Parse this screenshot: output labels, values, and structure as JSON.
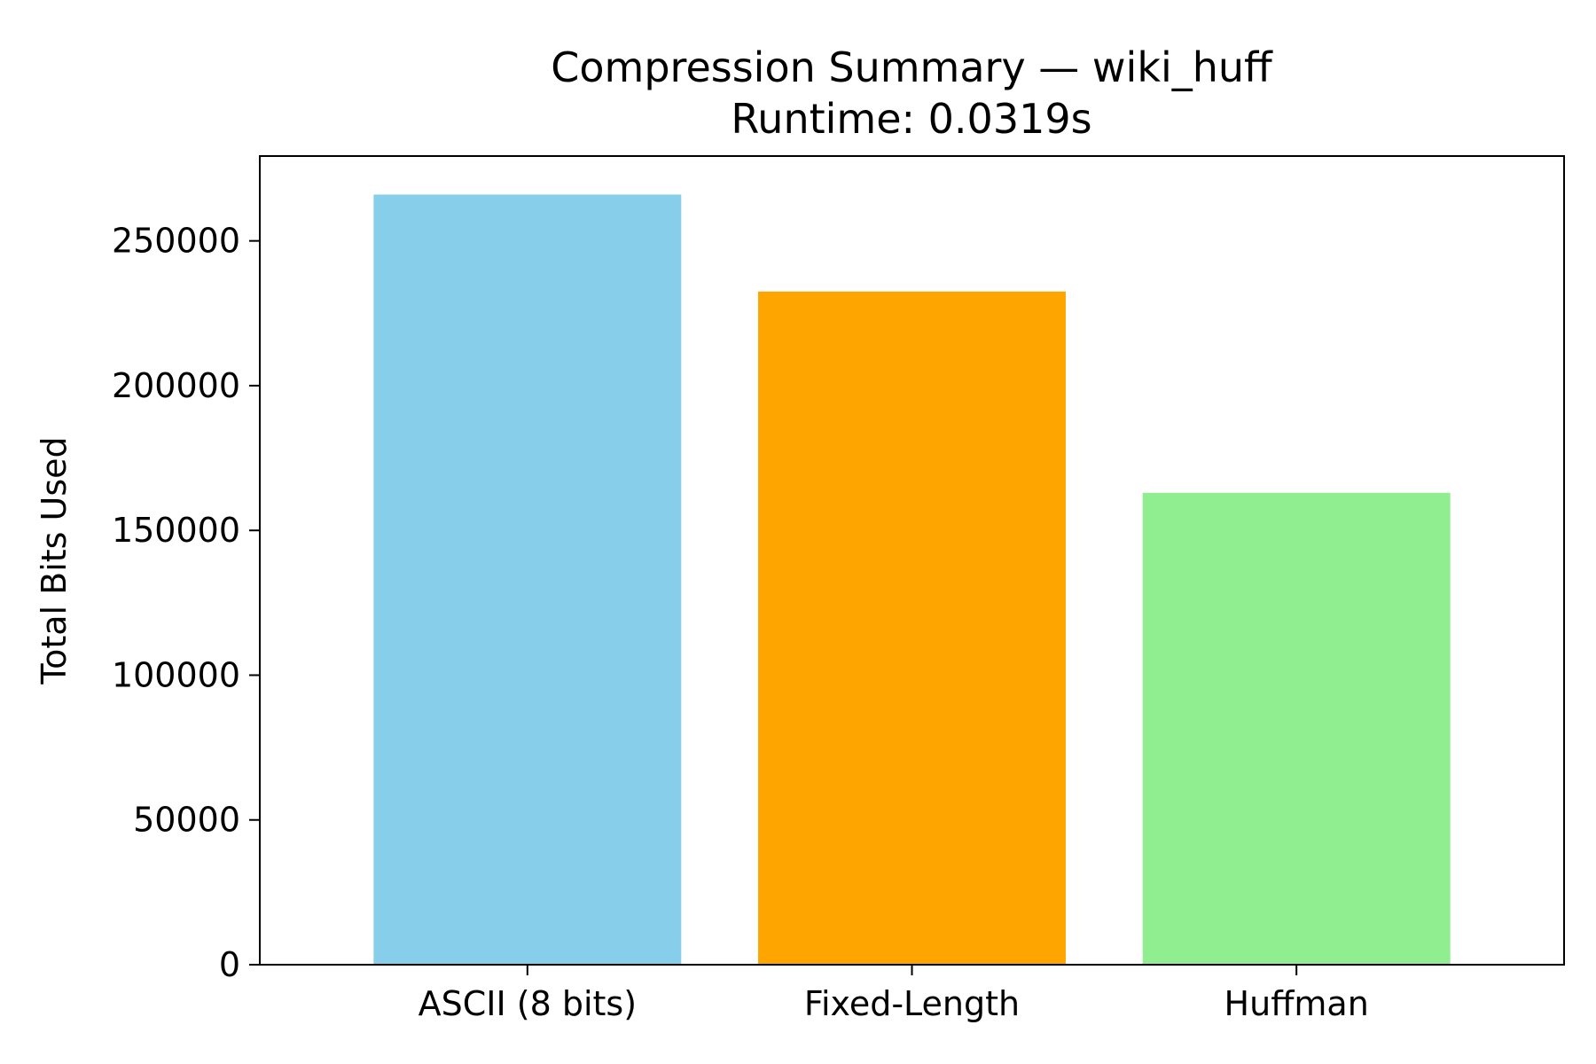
{
  "chart_data": {
    "type": "bar",
    "title": "Compression Summary — wiki_huff",
    "subtitle": "Runtime: 0.0319s",
    "xlabel": "",
    "ylabel": "Total Bits Used",
    "categories": [
      "ASCII (8 bits)",
      "Fixed-Length",
      "Huffman"
    ],
    "values": [
      266000,
      232500,
      163000
    ],
    "colors": [
      "#87ceeb",
      "#ffa500",
      "#90ee90"
    ],
    "ylim": [
      0,
      279300
    ],
    "yticks": [
      0,
      50000,
      100000,
      150000,
      200000,
      250000
    ],
    "ytick_labels": [
      "0",
      "50000",
      "100000",
      "150000",
      "200000",
      "250000"
    ],
    "grid": false,
    "legend": "none"
  }
}
